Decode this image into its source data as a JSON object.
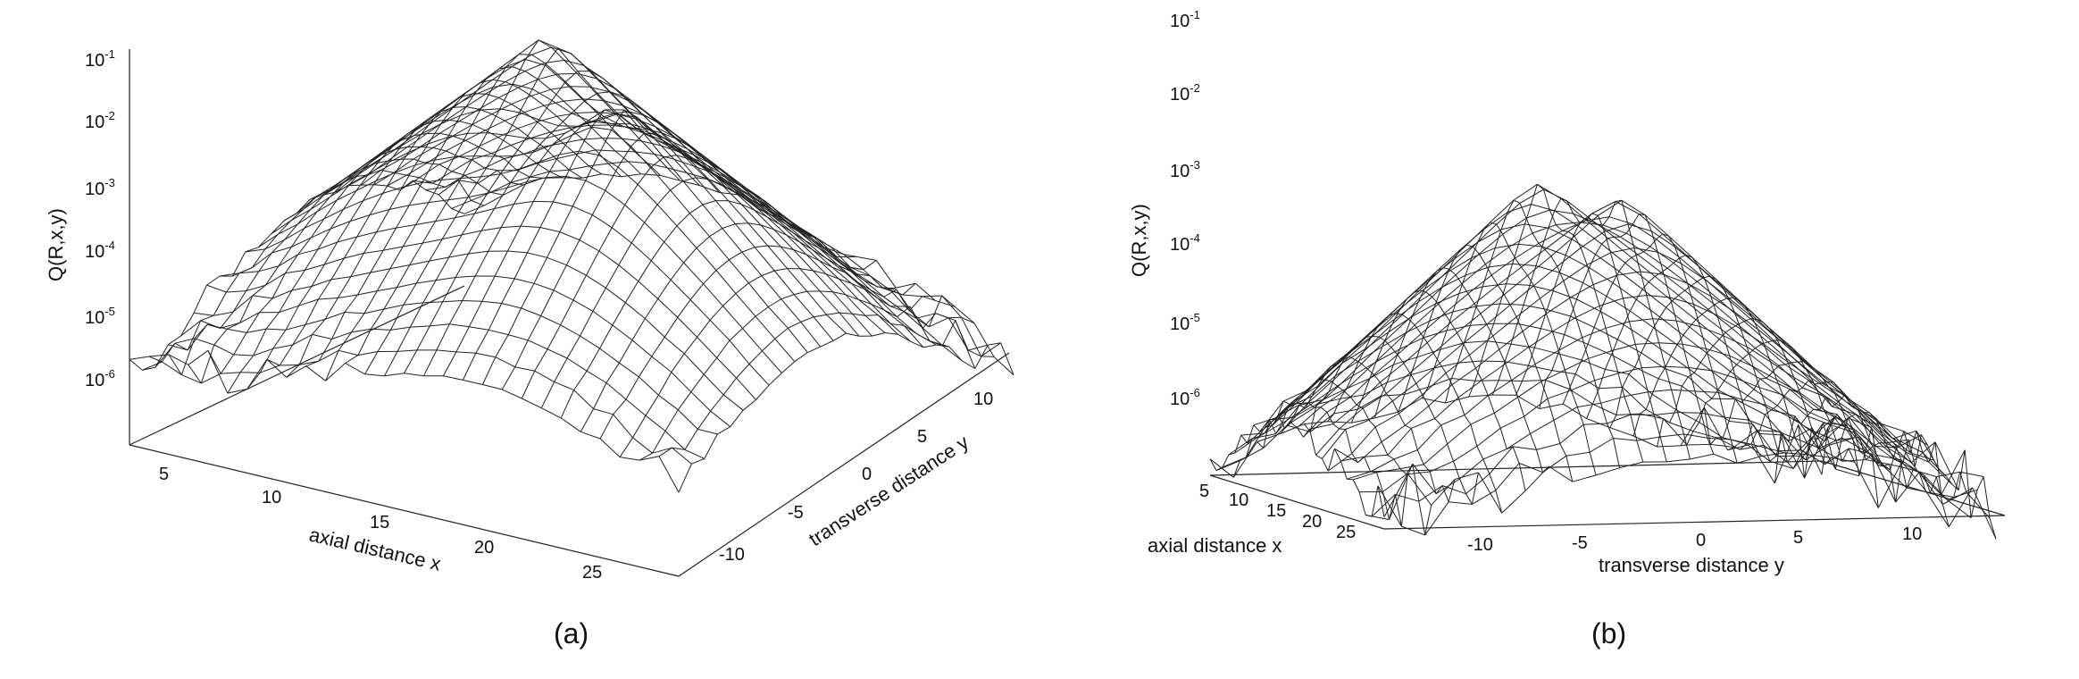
{
  "chart_data": [
    {
      "type": "surface",
      "panel_label": "(a)",
      "xlabel": "axial distance x",
      "ylabel": "transverse distance y",
      "zlabel": "Q(R,x,y)",
      "zscale": "log",
      "zlim": [
        1e-07,
        0.1
      ],
      "x_ticks": [
        "5",
        "10",
        "15",
        "20",
        "25"
      ],
      "y_ticks": [
        "-10",
        "-5",
        "0",
        "5",
        "10"
      ],
      "z_ticks": [
        {
          "base": "10",
          "exp": "-1"
        },
        {
          "base": "10",
          "exp": "-2"
        },
        {
          "base": "10",
          "exp": "-3"
        },
        {
          "base": "10",
          "exp": "-4"
        },
        {
          "base": "10",
          "exp": "-5"
        },
        {
          "base": "10",
          "exp": "-6"
        }
      ],
      "xlim": [
        1,
        28
      ],
      "ylim": [
        -13,
        13
      ],
      "peaks": [
        {
          "x": 12,
          "y": -2,
          "z": 0.08
        },
        {
          "x": 18,
          "y": 2,
          "z": 0.05
        }
      ],
      "noise_floor": 2e-06
    },
    {
      "type": "surface",
      "panel_label": "(b)",
      "xlabel": "axial distance x",
      "ylabel": "transverse distance y",
      "zlabel": "Q(R,x,y)",
      "zscale": "log",
      "zlim": [
        1e-07,
        0.1
      ],
      "x_ticks": [
        "5",
        "10",
        "15",
        "20",
        "25"
      ],
      "y_ticks": [
        "-10",
        "-5",
        "0",
        "5",
        "10"
      ],
      "z_ticks": [
        {
          "base": "10",
          "exp": "-1"
        },
        {
          "base": "10",
          "exp": "-2"
        },
        {
          "base": "10",
          "exp": "-3"
        },
        {
          "base": "10",
          "exp": "-4"
        },
        {
          "base": "10",
          "exp": "-5"
        },
        {
          "base": "10",
          "exp": "-6"
        }
      ],
      "xlim": [
        1,
        28
      ],
      "ylim": [
        -13,
        13
      ],
      "peaks": [
        {
          "x": 12,
          "y": -2,
          "z": 0.012
        },
        {
          "x": 17,
          "y": 0,
          "z": 0.01
        }
      ],
      "noise_floor": 1e-06
    }
  ]
}
